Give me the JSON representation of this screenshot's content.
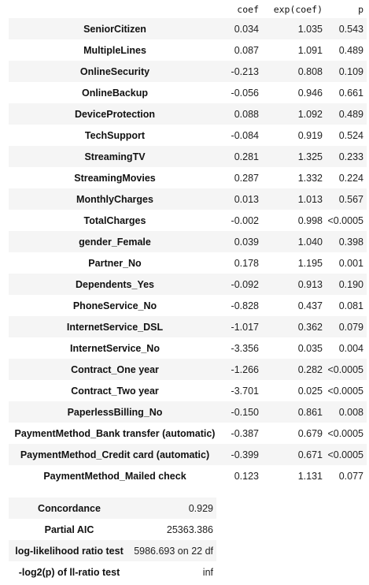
{
  "columns": {
    "covariate": "",
    "coef": "coef",
    "exp_coef": "exp(coef)",
    "p": "p"
  },
  "rows": [
    {
      "covariate": "SeniorCitizen",
      "coef": "0.034",
      "exp_coef": "1.035",
      "p": "0.543"
    },
    {
      "covariate": "MultipleLines",
      "coef": "0.087",
      "exp_coef": "1.091",
      "p": "0.489"
    },
    {
      "covariate": "OnlineSecurity",
      "coef": "-0.213",
      "exp_coef": "0.808",
      "p": "0.109"
    },
    {
      "covariate": "OnlineBackup",
      "coef": "-0.056",
      "exp_coef": "0.946",
      "p": "0.661"
    },
    {
      "covariate": "DeviceProtection",
      "coef": "0.088",
      "exp_coef": "1.092",
      "p": "0.489"
    },
    {
      "covariate": "TechSupport",
      "coef": "-0.084",
      "exp_coef": "0.919",
      "p": "0.524"
    },
    {
      "covariate": "StreamingTV",
      "coef": "0.281",
      "exp_coef": "1.325",
      "p": "0.233"
    },
    {
      "covariate": "StreamingMovies",
      "coef": "0.287",
      "exp_coef": "1.332",
      "p": "0.224"
    },
    {
      "covariate": "MonthlyCharges",
      "coef": "0.013",
      "exp_coef": "1.013",
      "p": "0.567"
    },
    {
      "covariate": "TotalCharges",
      "coef": "-0.002",
      "exp_coef": "0.998",
      "p": "<0.0005"
    },
    {
      "covariate": "gender_Female",
      "coef": "0.039",
      "exp_coef": "1.040",
      "p": "0.398"
    },
    {
      "covariate": "Partner_No",
      "coef": "0.178",
      "exp_coef": "1.195",
      "p": "0.001"
    },
    {
      "covariate": "Dependents_Yes",
      "coef": "-0.092",
      "exp_coef": "0.913",
      "p": "0.190"
    },
    {
      "covariate": "PhoneService_No",
      "coef": "-0.828",
      "exp_coef": "0.437",
      "p": "0.081"
    },
    {
      "covariate": "InternetService_DSL",
      "coef": "-1.017",
      "exp_coef": "0.362",
      "p": "0.079"
    },
    {
      "covariate": "InternetService_No",
      "coef": "-3.356",
      "exp_coef": "0.035",
      "p": "0.004"
    },
    {
      "covariate": "Contract_One year",
      "coef": "-1.266",
      "exp_coef": "0.282",
      "p": "<0.0005"
    },
    {
      "covariate": "Contract_Two year",
      "coef": "-3.701",
      "exp_coef": "0.025",
      "p": "<0.0005"
    },
    {
      "covariate": "PaperlessBilling_No",
      "coef": "-0.150",
      "exp_coef": "0.861",
      "p": "0.008"
    },
    {
      "covariate": "PaymentMethod_Bank transfer (automatic)",
      "coef": "-0.387",
      "exp_coef": "0.679",
      "p": "<0.0005"
    },
    {
      "covariate": "PaymentMethod_Credit card (automatic)",
      "coef": "-0.399",
      "exp_coef": "0.671",
      "p": "<0.0005"
    },
    {
      "covariate": "PaymentMethod_Mailed check",
      "coef": "0.123",
      "exp_coef": "1.131",
      "p": "0.077"
    }
  ],
  "summary": [
    {
      "metric": "Concordance",
      "value": "0.929"
    },
    {
      "metric": "Partial AIC",
      "value": "25363.386"
    },
    {
      "metric": "log-likelihood ratio test",
      "value": "5986.693 on 22 df"
    },
    {
      "metric": "-log2(p) of ll-ratio test",
      "value": "inf"
    }
  ],
  "colors": {
    "stripe": "#f5f5f5",
    "background": "#ffffff",
    "text": "#111111"
  }
}
